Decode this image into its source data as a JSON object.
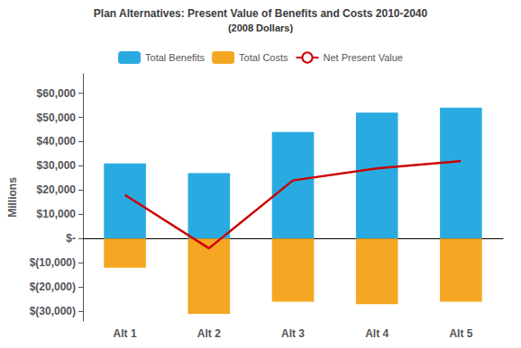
{
  "chart_data": {
    "type": "bar",
    "title": "Plan Alternatives: Present Value of Benefits and Costs 2010-2040",
    "subtitle": "(2008 Dollars)",
    "ylabel": "Millions",
    "categories": [
      "Alt 1",
      "Alt 2",
      "Alt 3",
      "Alt 4",
      "Alt 5"
    ],
    "series": [
      {
        "name": "Total Benefits",
        "type": "bar",
        "color": "#29ABE2",
        "values": [
          31000,
          27000,
          44000,
          52000,
          54000
        ]
      },
      {
        "name": "Total Costs",
        "type": "bar",
        "color": "#F5A623",
        "values": [
          -12000,
          -31000,
          -26000,
          -27000,
          -26000
        ]
      },
      {
        "name": "Net Present Value",
        "type": "line",
        "color": "#CC0000",
        "values": [
          18000,
          -4000,
          24000,
          29000,
          32000
        ]
      }
    ],
    "ylim": [
      -34000,
      68000
    ],
    "yticks": [
      {
        "value": -30000,
        "label": "$(30,000)"
      },
      {
        "value": -20000,
        "label": "$(20,000)"
      },
      {
        "value": -10000,
        "label": "$(10,000)"
      },
      {
        "value": 0,
        "label": "$-"
      },
      {
        "value": 10000,
        "label": "$10,000"
      },
      {
        "value": 20000,
        "label": "$20,000"
      },
      {
        "value": 30000,
        "label": "$30,000"
      },
      {
        "value": 40000,
        "label": "$40,000"
      },
      {
        "value": 50000,
        "label": "$50,000"
      },
      {
        "value": 60000,
        "label": "$60,000"
      }
    ],
    "grid": false,
    "legend": "top"
  }
}
